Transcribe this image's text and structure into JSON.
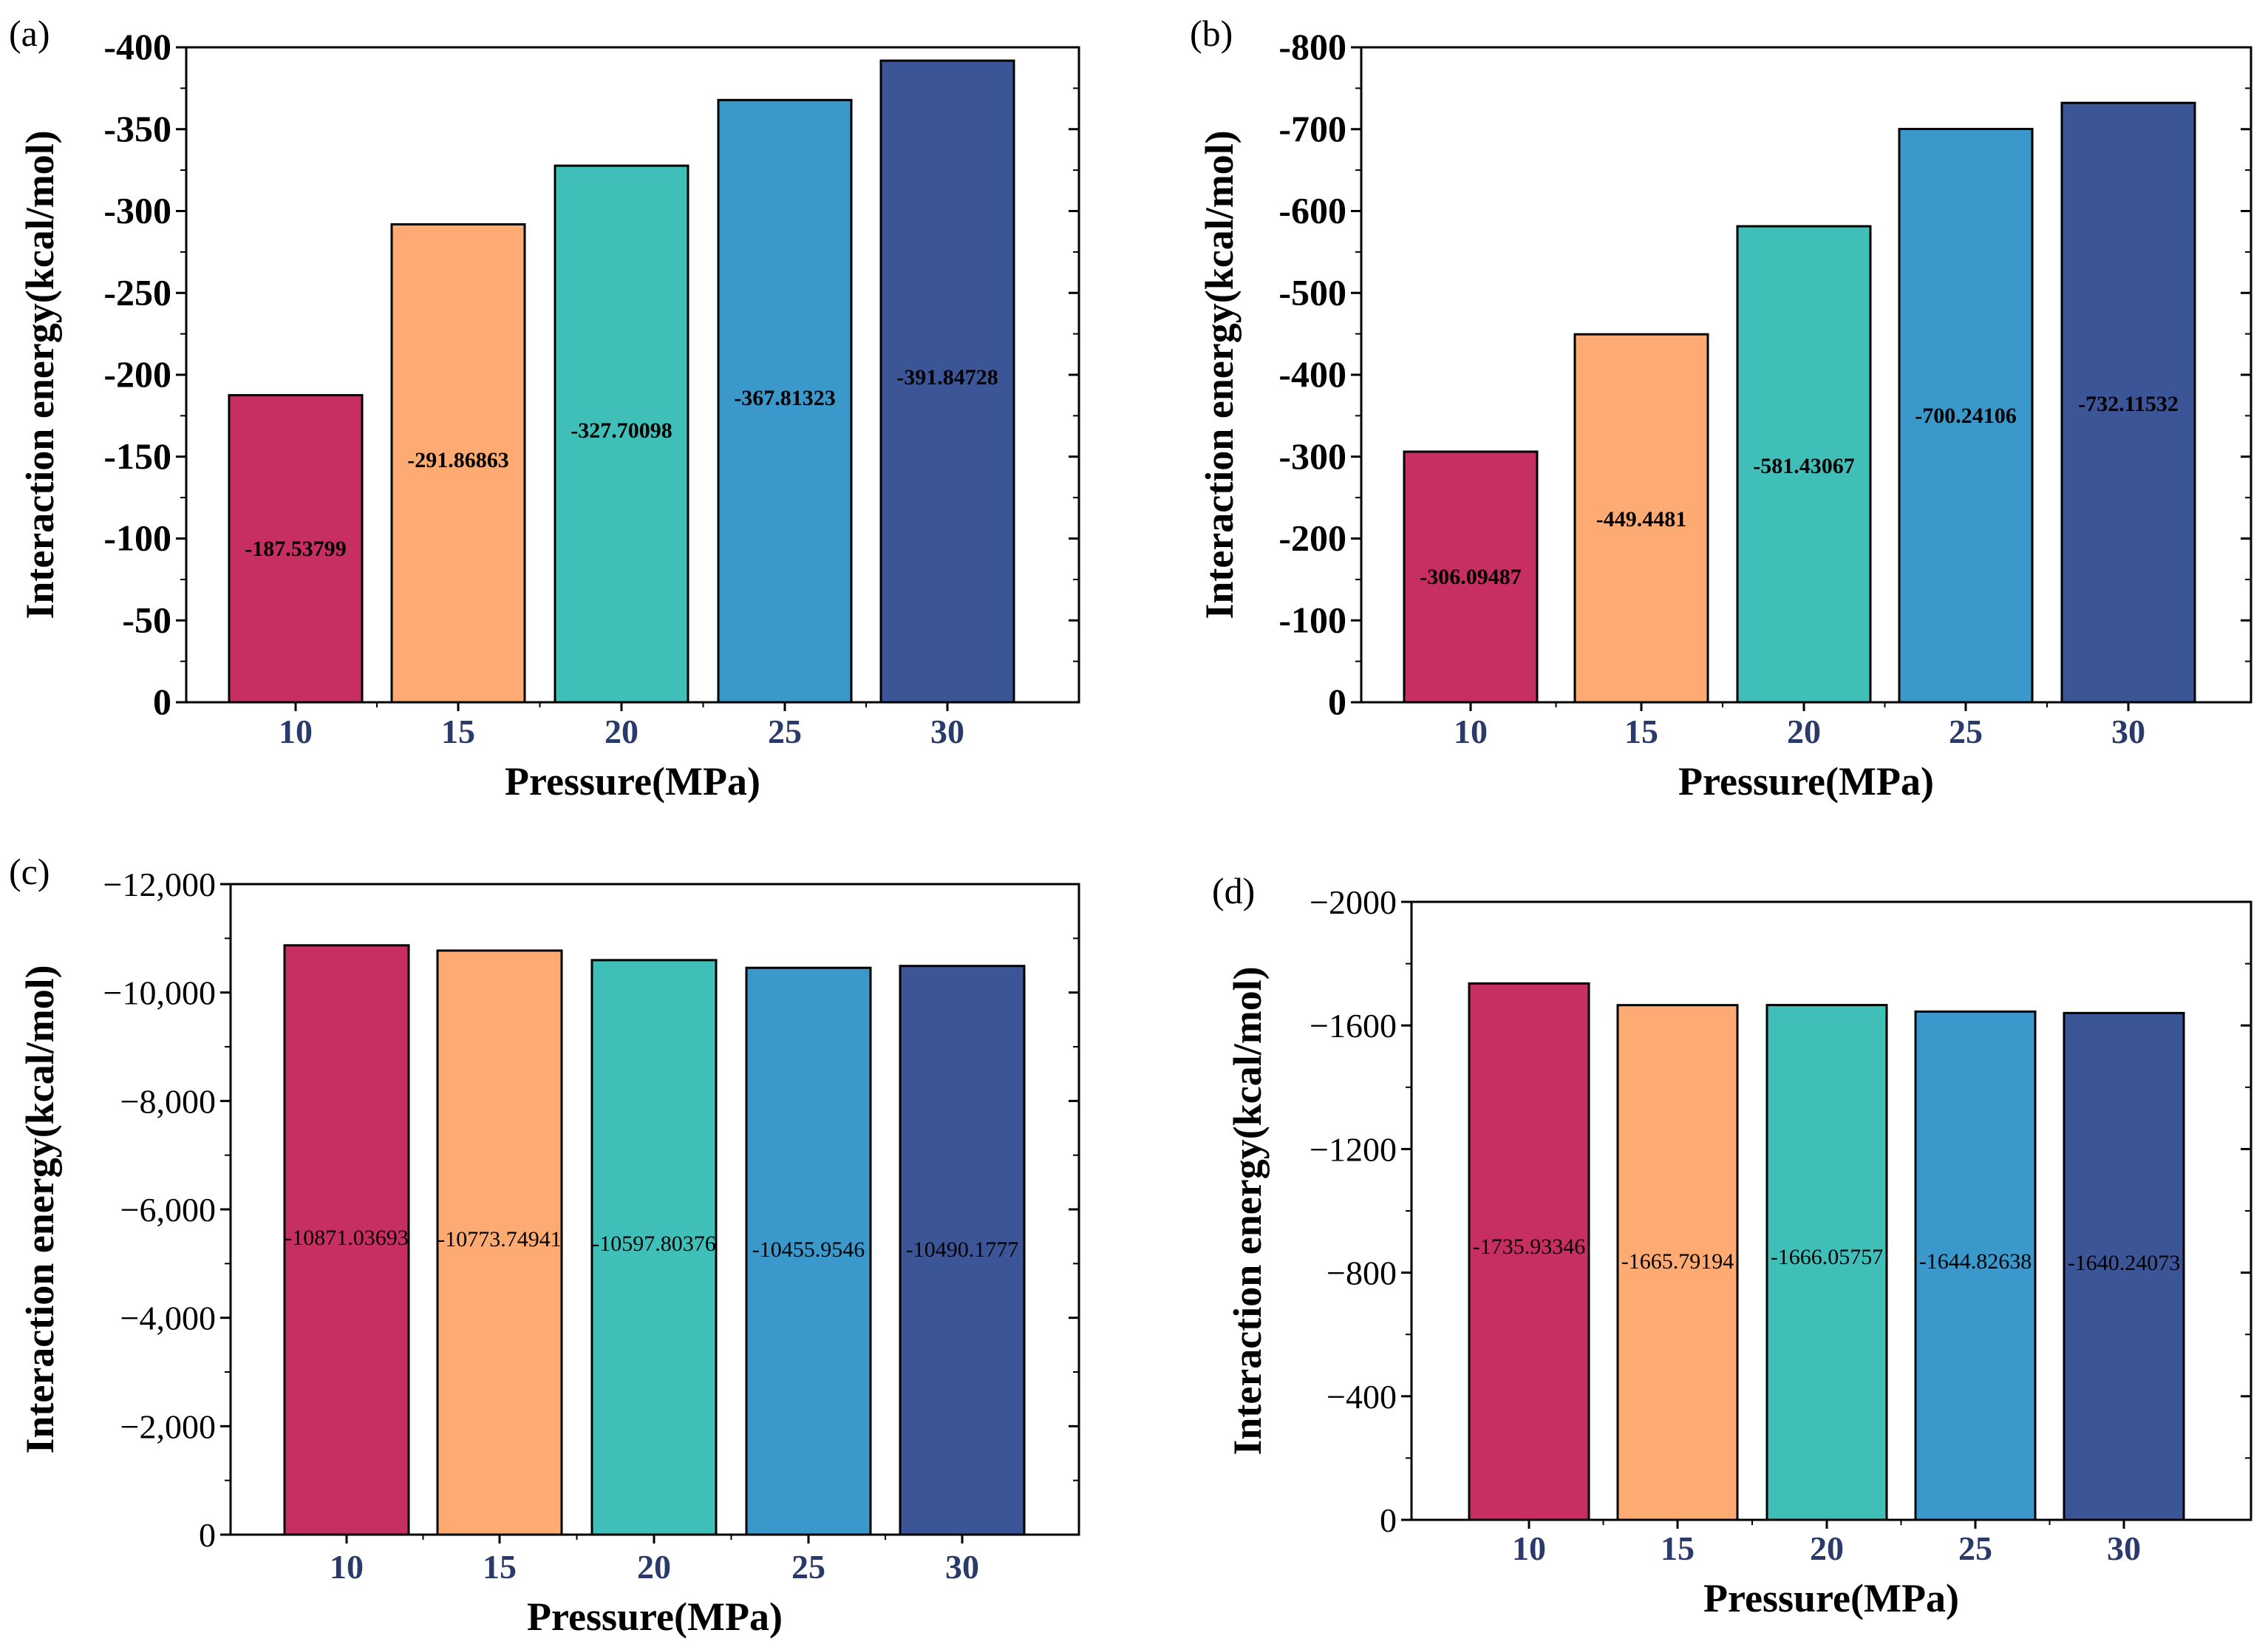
{
  "chart_data": [
    {
      "panel": "(a)",
      "type": "bar",
      "categories": [
        "10",
        "15",
        "20",
        "25",
        "30"
      ],
      "values": [
        -187.53799,
        -291.86863,
        -327.70098,
        -367.81323,
        -391.84728
      ],
      "data_labels": [
        "-187.53799",
        "-291.86863",
        "-327.70098",
        "-367.81323",
        "-391.84728"
      ],
      "yticks": [
        "0",
        "-50",
        "-100",
        "-150",
        "-200",
        "-250",
        "-300",
        "-350",
        "-400"
      ],
      "ylim": [
        0,
        -400
      ],
      "xlabel": "Pressure(MPa)",
      "ylabel": "Interaction energy(kcal/mol)",
      "colors": [
        "#c72e62",
        "#fdab72",
        "#40bfb8",
        "#3a98cb",
        "#3c5596"
      ]
    },
    {
      "panel": "(b)",
      "type": "bar",
      "categories": [
        "10",
        "15",
        "20",
        "25",
        "30"
      ],
      "values": [
        -306.09487,
        -449.4481,
        -581.43067,
        -700.24106,
        -732.11532
      ],
      "data_labels": [
        "-306.09487",
        "-449.4481",
        "-581.43067",
        "-700.24106",
        "-732.11532"
      ],
      "yticks": [
        "0",
        "-100",
        "-200",
        "-300",
        "-400",
        "-500",
        "-600",
        "-700",
        "-800"
      ],
      "ylim": [
        0,
        -800
      ],
      "xlabel": "Pressure(MPa)",
      "ylabel": "Interaction energy(kcal/mol)",
      "colors": [
        "#c72e62",
        "#fdab72",
        "#40bfb8",
        "#3a98cb",
        "#3c5596"
      ]
    },
    {
      "panel": "(c)",
      "type": "bar",
      "categories": [
        "10",
        "15",
        "20",
        "25",
        "30"
      ],
      "values": [
        -10871.03693,
        -10773.74941,
        -10597.80376,
        -10455.9546,
        -10490.1777
      ],
      "data_labels": [
        "-10871.03693",
        "-10773.74941",
        "-10597.80376",
        "-10455.9546",
        "-10490.1777"
      ],
      "yticks": [
        "0",
        "−2,000",
        "−4,000",
        "−6,000",
        "−8,000",
        "−10,000",
        "−12,000"
      ],
      "ylim": [
        0,
        -12000
      ],
      "xlabel": "Pressure(MPa)",
      "ylabel": "Interaction energy(kcal/mol)",
      "colors": [
        "#c72e62",
        "#fdab72",
        "#40bfb8",
        "#3a98cb",
        "#3c5596"
      ]
    },
    {
      "panel": "(d)",
      "type": "bar",
      "categories": [
        "10",
        "15",
        "20",
        "25",
        "30"
      ],
      "values": [
        -1735.93346,
        -1665.79194,
        -1666.05757,
        -1644.82638,
        -1640.24073
      ],
      "data_labels": [
        "-1735.93346",
        "-1665.79194",
        "-1666.05757",
        "-1644.82638",
        "-1640.24073"
      ],
      "yticks": [
        "0",
        "−400",
        "−800",
        "−1200",
        "−1600",
        "−2000"
      ],
      "ylim": [
        0,
        -2000
      ],
      "xlabel": "Pressure(MPa)",
      "ylabel": "Interaction energy(kcal/mol)",
      "colors": [
        "#c72e62",
        "#fdab72",
        "#40bfb8",
        "#3a98cb",
        "#3c5596"
      ]
    }
  ],
  "style": {
    "xtick_color": "#2a3a6b",
    "axis_color": "#000000"
  }
}
